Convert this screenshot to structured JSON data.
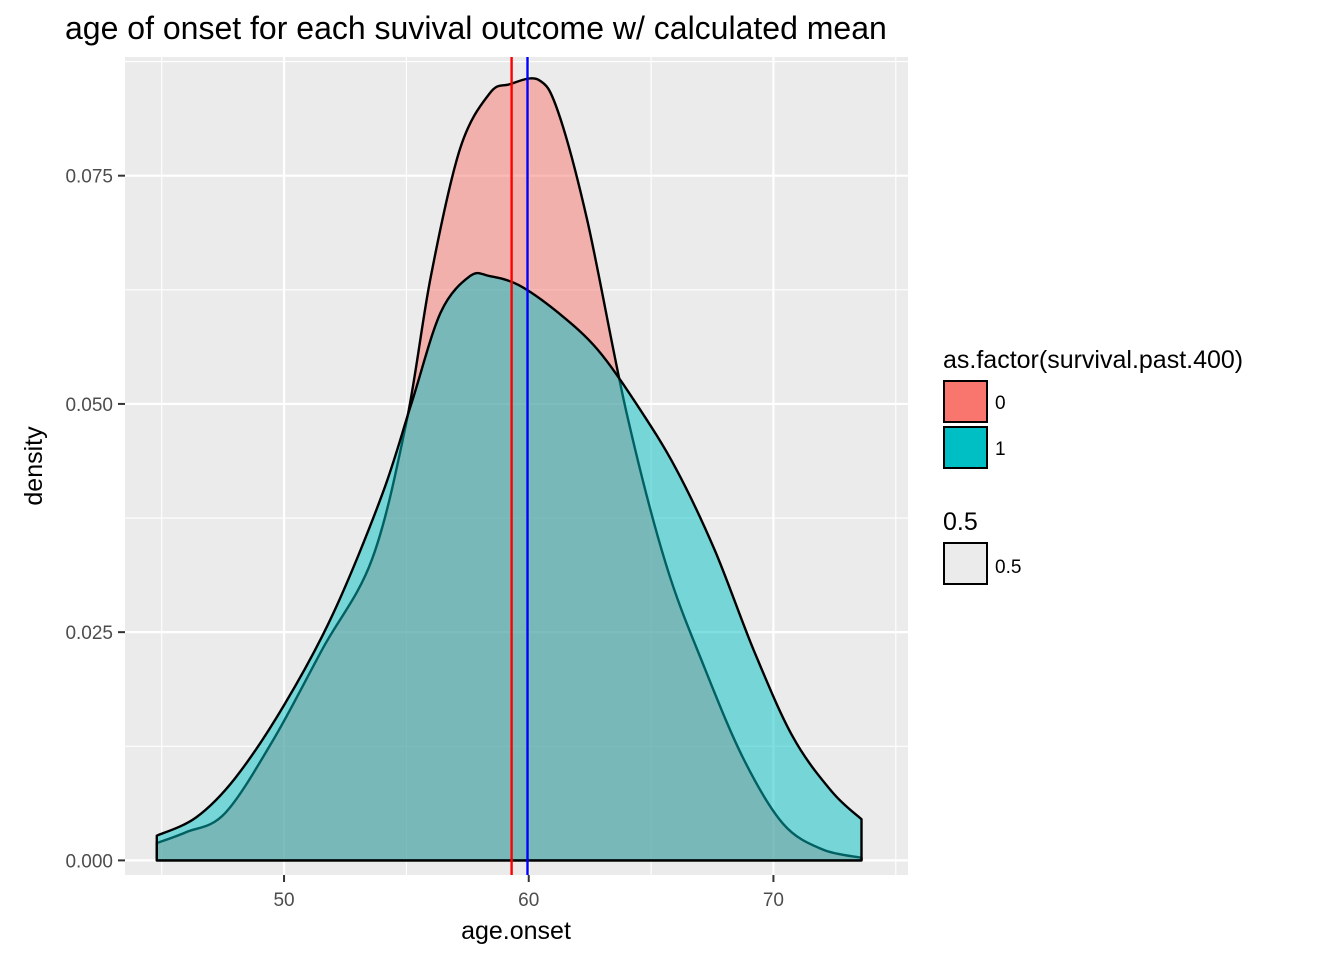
{
  "chart_data": {
    "type": "area",
    "subtype": "density",
    "title": "age of onset for each suvival outcome w/ calculated mean",
    "xlabel": "age.onset",
    "ylabel": "density",
    "xlim": [
      43.5,
      75.5
    ],
    "ylim": [
      -0.0016,
      0.088
    ],
    "x_ticks": [
      50,
      60,
      70
    ],
    "x_tick_labels": [
      "50",
      "60",
      "70"
    ],
    "y_ticks": [
      0.0,
      0.025,
      0.05,
      0.075
    ],
    "y_tick_labels": [
      "0.000",
      "0.025",
      "0.050",
      "0.075"
    ],
    "grid": true,
    "legend_position": "right",
    "series": [
      {
        "name": "0",
        "color": "#F8766D",
        "x": [
          44.8,
          46.0,
          47.6,
          49.6,
          51.6,
          53.6,
          55.0,
          56.0,
          57.2,
          58.4,
          59.2,
          60.4,
          61.2,
          62.4,
          64.0,
          65.6,
          67.2,
          68.8,
          70.4,
          72.0,
          73.6
        ],
        "y": [
          0.0019,
          0.0031,
          0.0052,
          0.0134,
          0.0233,
          0.033,
          0.048,
          0.064,
          0.078,
          0.084,
          0.085,
          0.0855,
          0.082,
          0.07,
          0.049,
          0.0325,
          0.021,
          0.011,
          0.004,
          0.0012,
          0.0003
        ]
      },
      {
        "name": "1",
        "color": "#00BFC4",
        "x": [
          44.8,
          46.4,
          48.0,
          50.0,
          52.0,
          54.0,
          55.2,
          56.4,
          57.6,
          58.4,
          59.6,
          61.2,
          62.8,
          64.4,
          66.0,
          67.6,
          69.2,
          70.8,
          72.4,
          73.6
        ],
        "y": [
          0.0027,
          0.0047,
          0.009,
          0.017,
          0.027,
          0.04,
          0.05,
          0.06,
          0.064,
          0.064,
          0.063,
          0.06,
          0.056,
          0.05,
          0.043,
          0.034,
          0.023,
          0.0135,
          0.0075,
          0.0045
        ]
      }
    ],
    "vlines": [
      {
        "x": 59.3,
        "color": "#FF0000"
      },
      {
        "x": 59.95,
        "color": "#0000FF"
      }
    ],
    "fill_alpha": 0.5,
    "legend": {
      "fill_title": "as.factor(survival.past.400)",
      "fill_entries": [
        {
          "label": "0",
          "color": "#F8766D"
        },
        {
          "label": "1",
          "color": "#00BFC4"
        }
      ],
      "alpha_title": "0.5",
      "alpha_entries": [
        {
          "label": "0.5",
          "color": "#EBEBEB"
        }
      ]
    },
    "panel_background": "#EBEBEB",
    "grid_color": "#FFFFFF"
  }
}
